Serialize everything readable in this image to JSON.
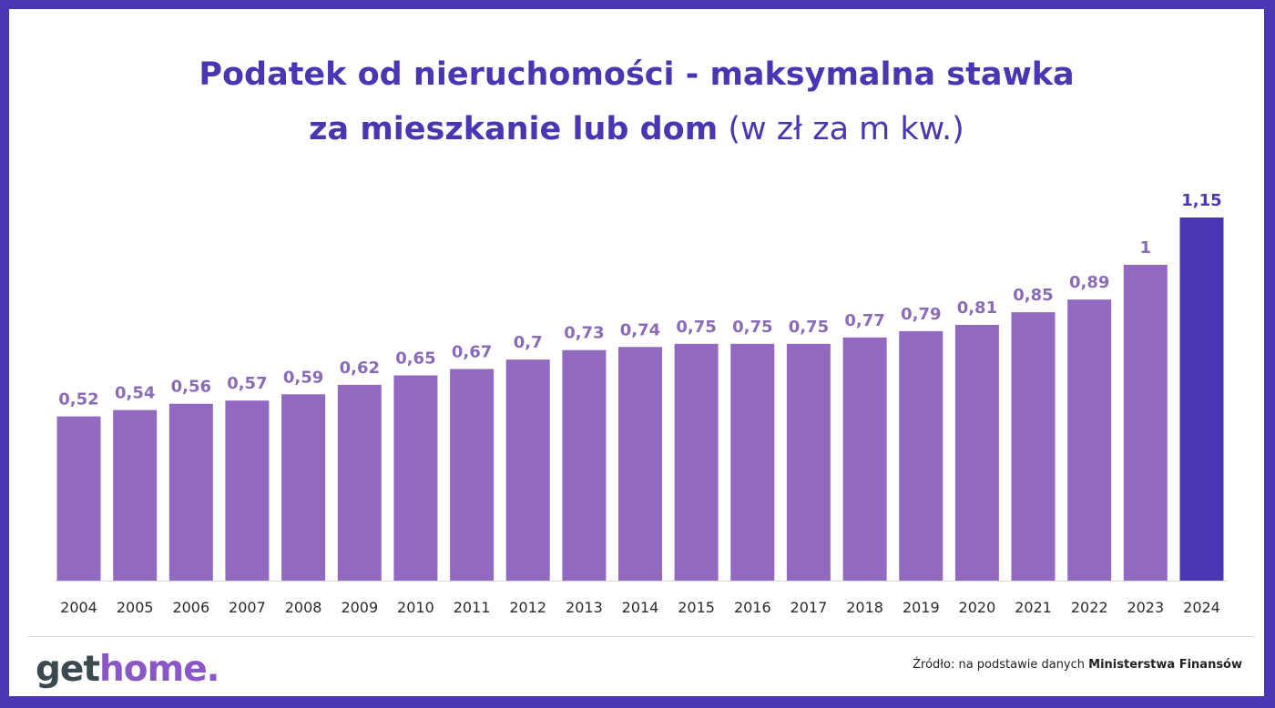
{
  "header": {
    "title_line1": "Podatek od nieruchomości - maksymalna stawka",
    "title_line2_bold": "za mieszkanie lub dom",
    "title_line2_light": "(w zł za m kw.)"
  },
  "chart_data": {
    "type": "bar",
    "title": "Podatek od nieruchomości - maksymalna stawka za mieszkanie lub dom (w zł za m kw.)",
    "categories": [
      "2004",
      "2005",
      "2006",
      "2007",
      "2008",
      "2009",
      "2010",
      "2011",
      "2012",
      "2013",
      "2014",
      "2015",
      "2016",
      "2017",
      "2018",
      "2019",
      "2020",
      "2021",
      "2022",
      "2023",
      "2024"
    ],
    "values": [
      0.52,
      0.54,
      0.56,
      0.57,
      0.59,
      0.62,
      0.65,
      0.67,
      0.7,
      0.73,
      0.74,
      0.75,
      0.75,
      0.75,
      0.77,
      0.79,
      0.81,
      0.85,
      0.89,
      1,
      1.15
    ],
    "value_labels": [
      "0,52",
      "0,54",
      "0,56",
      "0,57",
      "0,59",
      "0,62",
      "0,65",
      "0,67",
      "0,7",
      "0,73",
      "0,74",
      "0,75",
      "0,75",
      "0,75",
      "0,77",
      "0,79",
      "0,81",
      "0,85",
      "0,89",
      "1",
      "1,15"
    ],
    "ylim": [
      0,
      1.15
    ],
    "grid": false,
    "colors": {
      "bar": "#9169c1",
      "highlight_bar": "#4a35b3",
      "label": "#8a6bb8",
      "highlight_label": "#4a35b3"
    },
    "highlight_index": 20
  },
  "footer": {
    "logo_part1": "get",
    "logo_part2": "home.",
    "source_prefix": "Źródło: na podstawie danych ",
    "source_bold": "Ministerstwa Finansów"
  }
}
